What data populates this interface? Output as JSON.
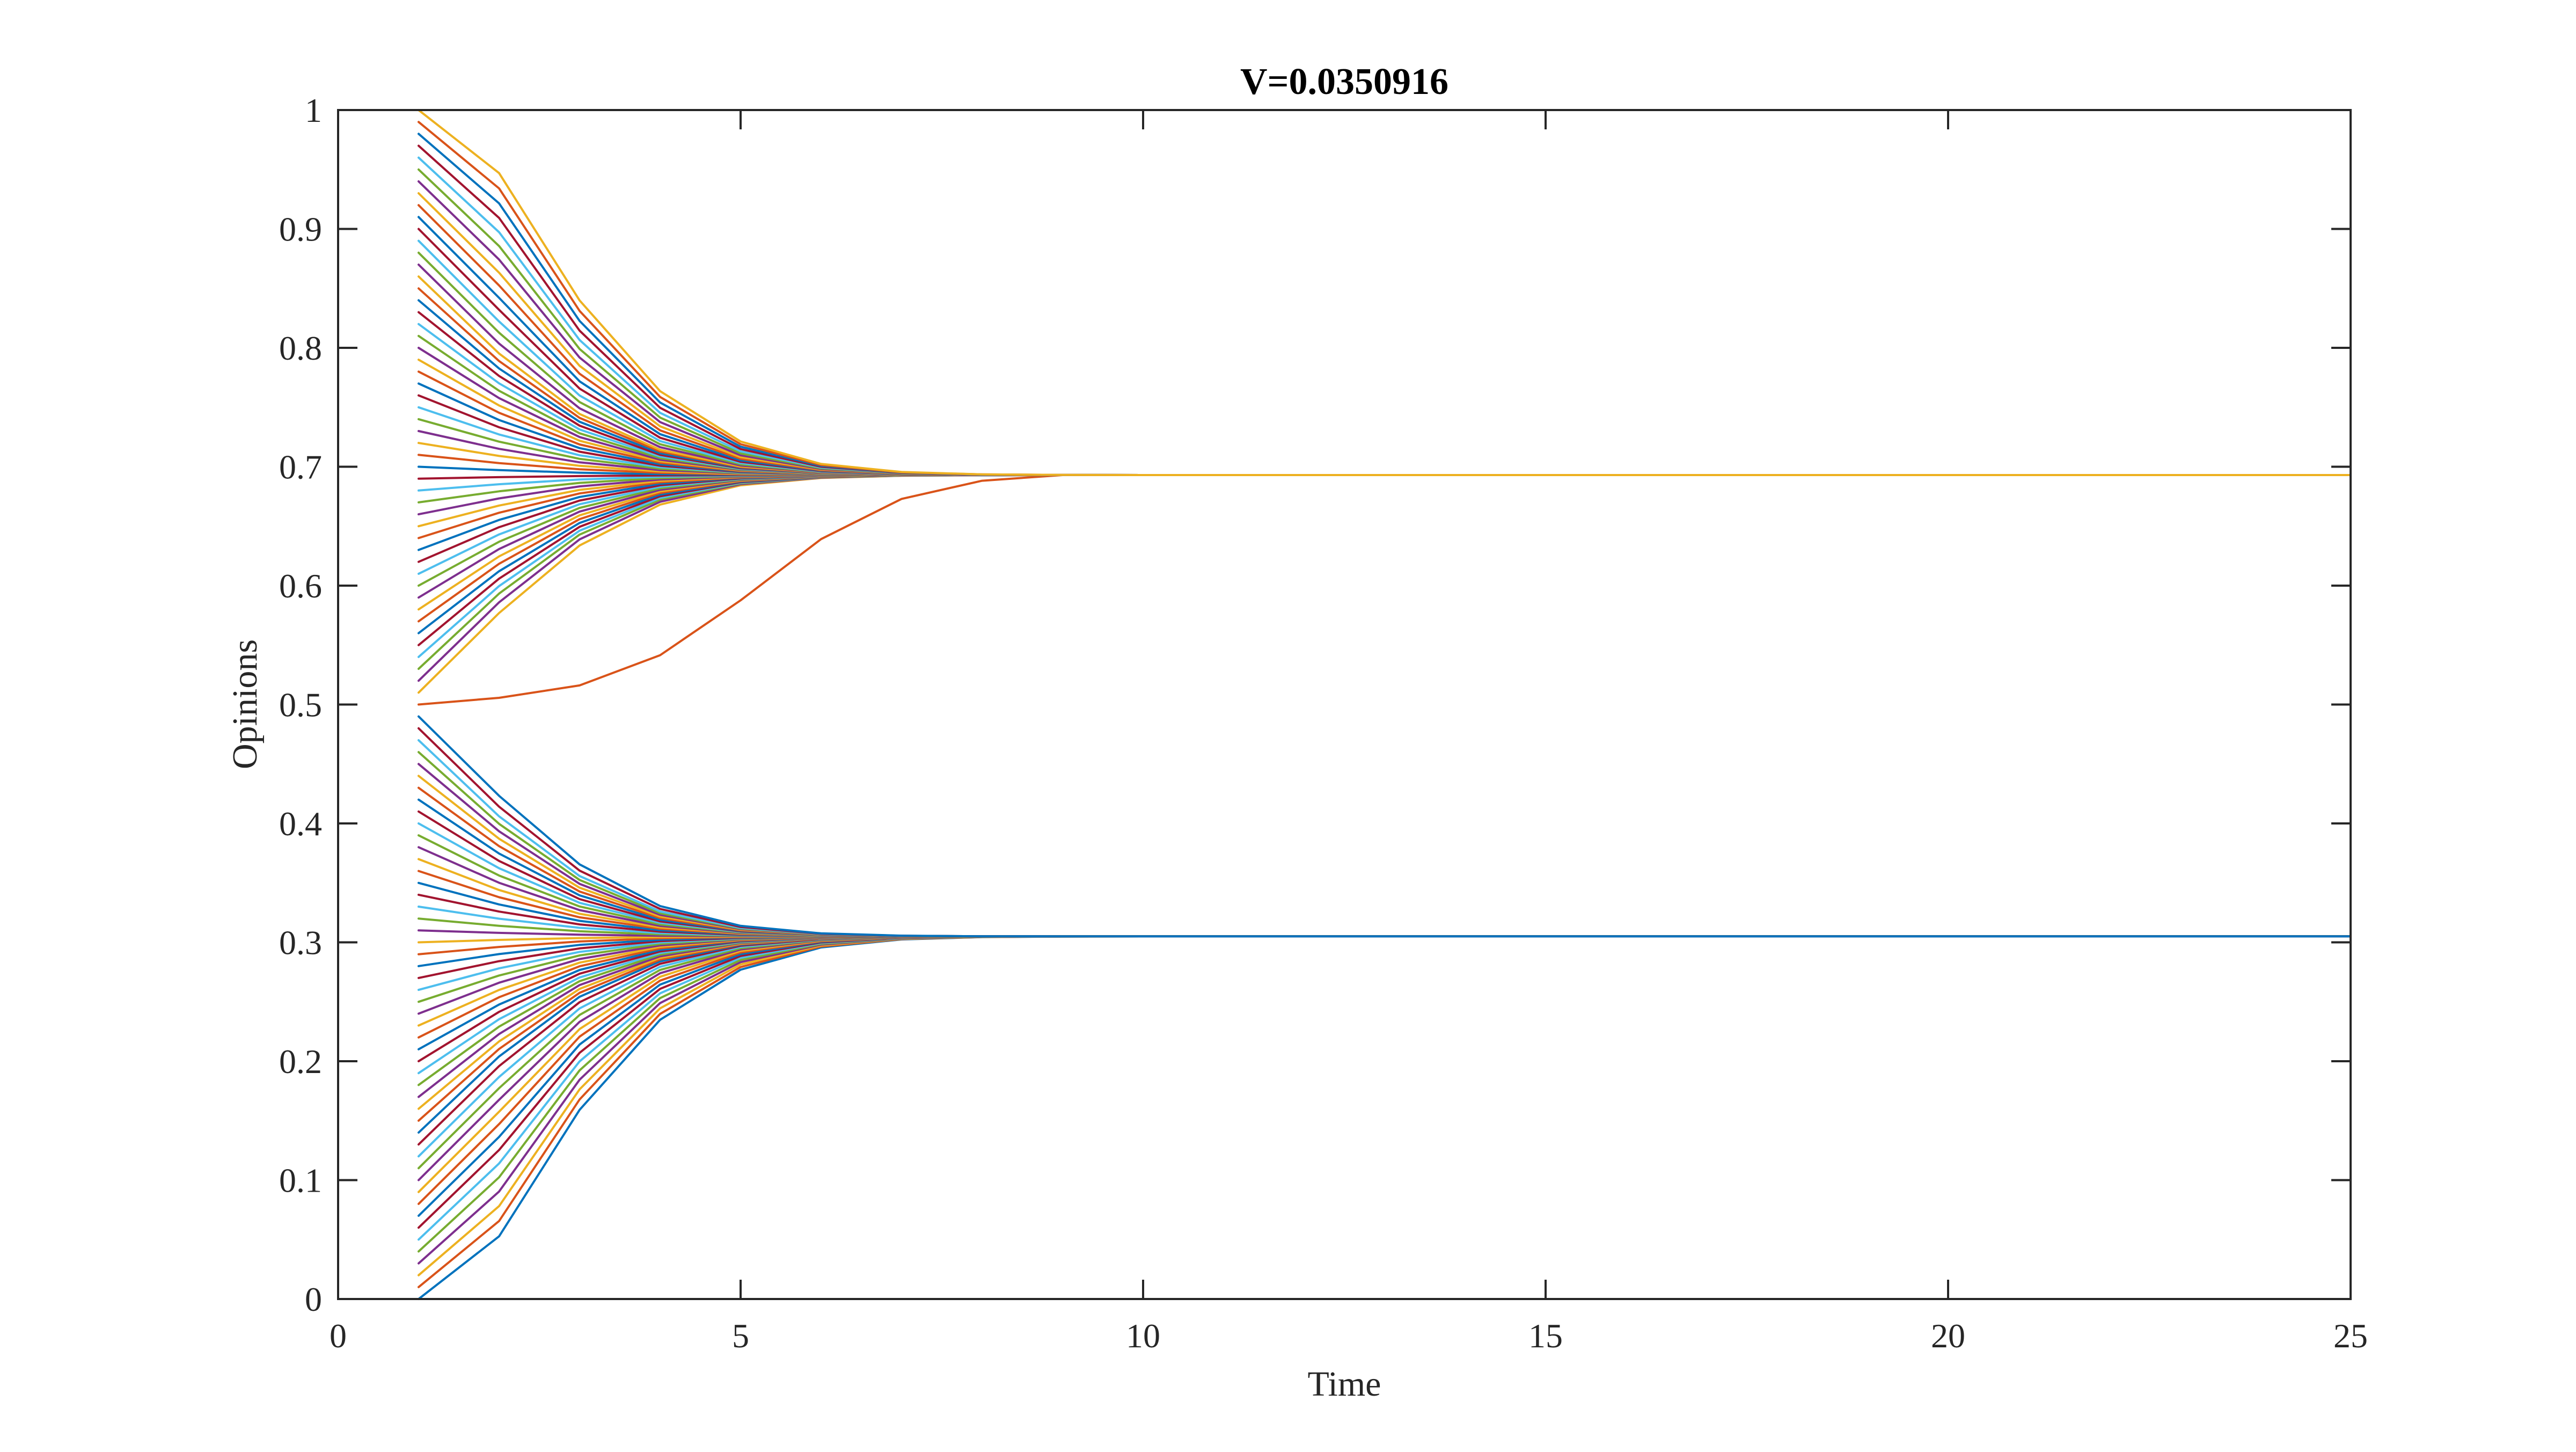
{
  "chart_data": {
    "type": "line",
    "title": "V=0.0350916",
    "xlabel": "Time",
    "ylabel": "Opinions",
    "xlim": [
      0,
      25
    ],
    "ylim": [
      0,
      1
    ],
    "x_ticks": [
      0,
      5,
      10,
      15,
      20,
      25
    ],
    "y_ticks": [
      0,
      0.1,
      0.2,
      0.3,
      0.4,
      0.5,
      0.6,
      0.7,
      0.8,
      0.9,
      1
    ],
    "x_tick_labels": [
      "0",
      "5",
      "10",
      "15",
      "20",
      "25"
    ],
    "y_tick_labels": [
      "0",
      "0.1",
      "0.2",
      "0.3",
      "0.4",
      "0.5",
      "0.6",
      "0.7",
      "0.8",
      "0.9",
      "1"
    ],
    "grid": false,
    "legend": "none",
    "colors": [
      "#0072BD",
      "#D95319",
      "#EDB120",
      "#7E2F8E",
      "#77AC30",
      "#4DBEEE",
      "#A2142F"
    ],
    "time": [
      1,
      2,
      3,
      4,
      5,
      6,
      7,
      8,
      9,
      10,
      11,
      12,
      13,
      14,
      15,
      16,
      17,
      18,
      19,
      20,
      21,
      22,
      23,
      24,
      25
    ],
    "initial_opinions": {
      "start": 0.0,
      "end": 1.0,
      "step": 0.01,
      "count": 101
    },
    "clusters": [
      {
        "range": [
          0.0,
          0.49
        ],
        "converges_to": 0.305
      },
      {
        "range": [
          0.5,
          1.0
        ],
        "converges_to": 0.693
      }
    ],
    "representative_series": [
      {
        "x": [
          1,
          2,
          3,
          4,
          5,
          6,
          7,
          8,
          9,
          10,
          12,
          25
        ],
        "values": [
          0.0,
          0.085,
          0.16,
          0.22,
          0.26,
          0.285,
          0.296,
          0.301,
          0.303,
          0.304,
          0.305,
          0.305
        ]
      },
      {
        "x": [
          1,
          2,
          3,
          4,
          5,
          6,
          7,
          8,
          9,
          10,
          12,
          25
        ],
        "values": [
          0.49,
          0.49,
          0.48,
          0.43,
          0.39,
          0.35,
          0.325,
          0.315,
          0.31,
          0.307,
          0.305,
          0.305
        ]
      },
      {
        "x": [
          1,
          2,
          3,
          4,
          5,
          6,
          7,
          8,
          9,
          10,
          11,
          12,
          25
        ],
        "values": [
          0.5,
          0.5,
          0.5,
          0.508,
          0.545,
          0.6,
          0.648,
          0.672,
          0.684,
          0.689,
          0.692,
          0.693,
          0.693
        ]
      },
      {
        "x": [
          1,
          2,
          3,
          4,
          5,
          6,
          7,
          8,
          9,
          10,
          12,
          25
        ],
        "values": [
          1.0,
          0.91,
          0.84,
          0.78,
          0.74,
          0.716,
          0.704,
          0.698,
          0.695,
          0.694,
          0.693,
          0.693
        ]
      }
    ]
  }
}
